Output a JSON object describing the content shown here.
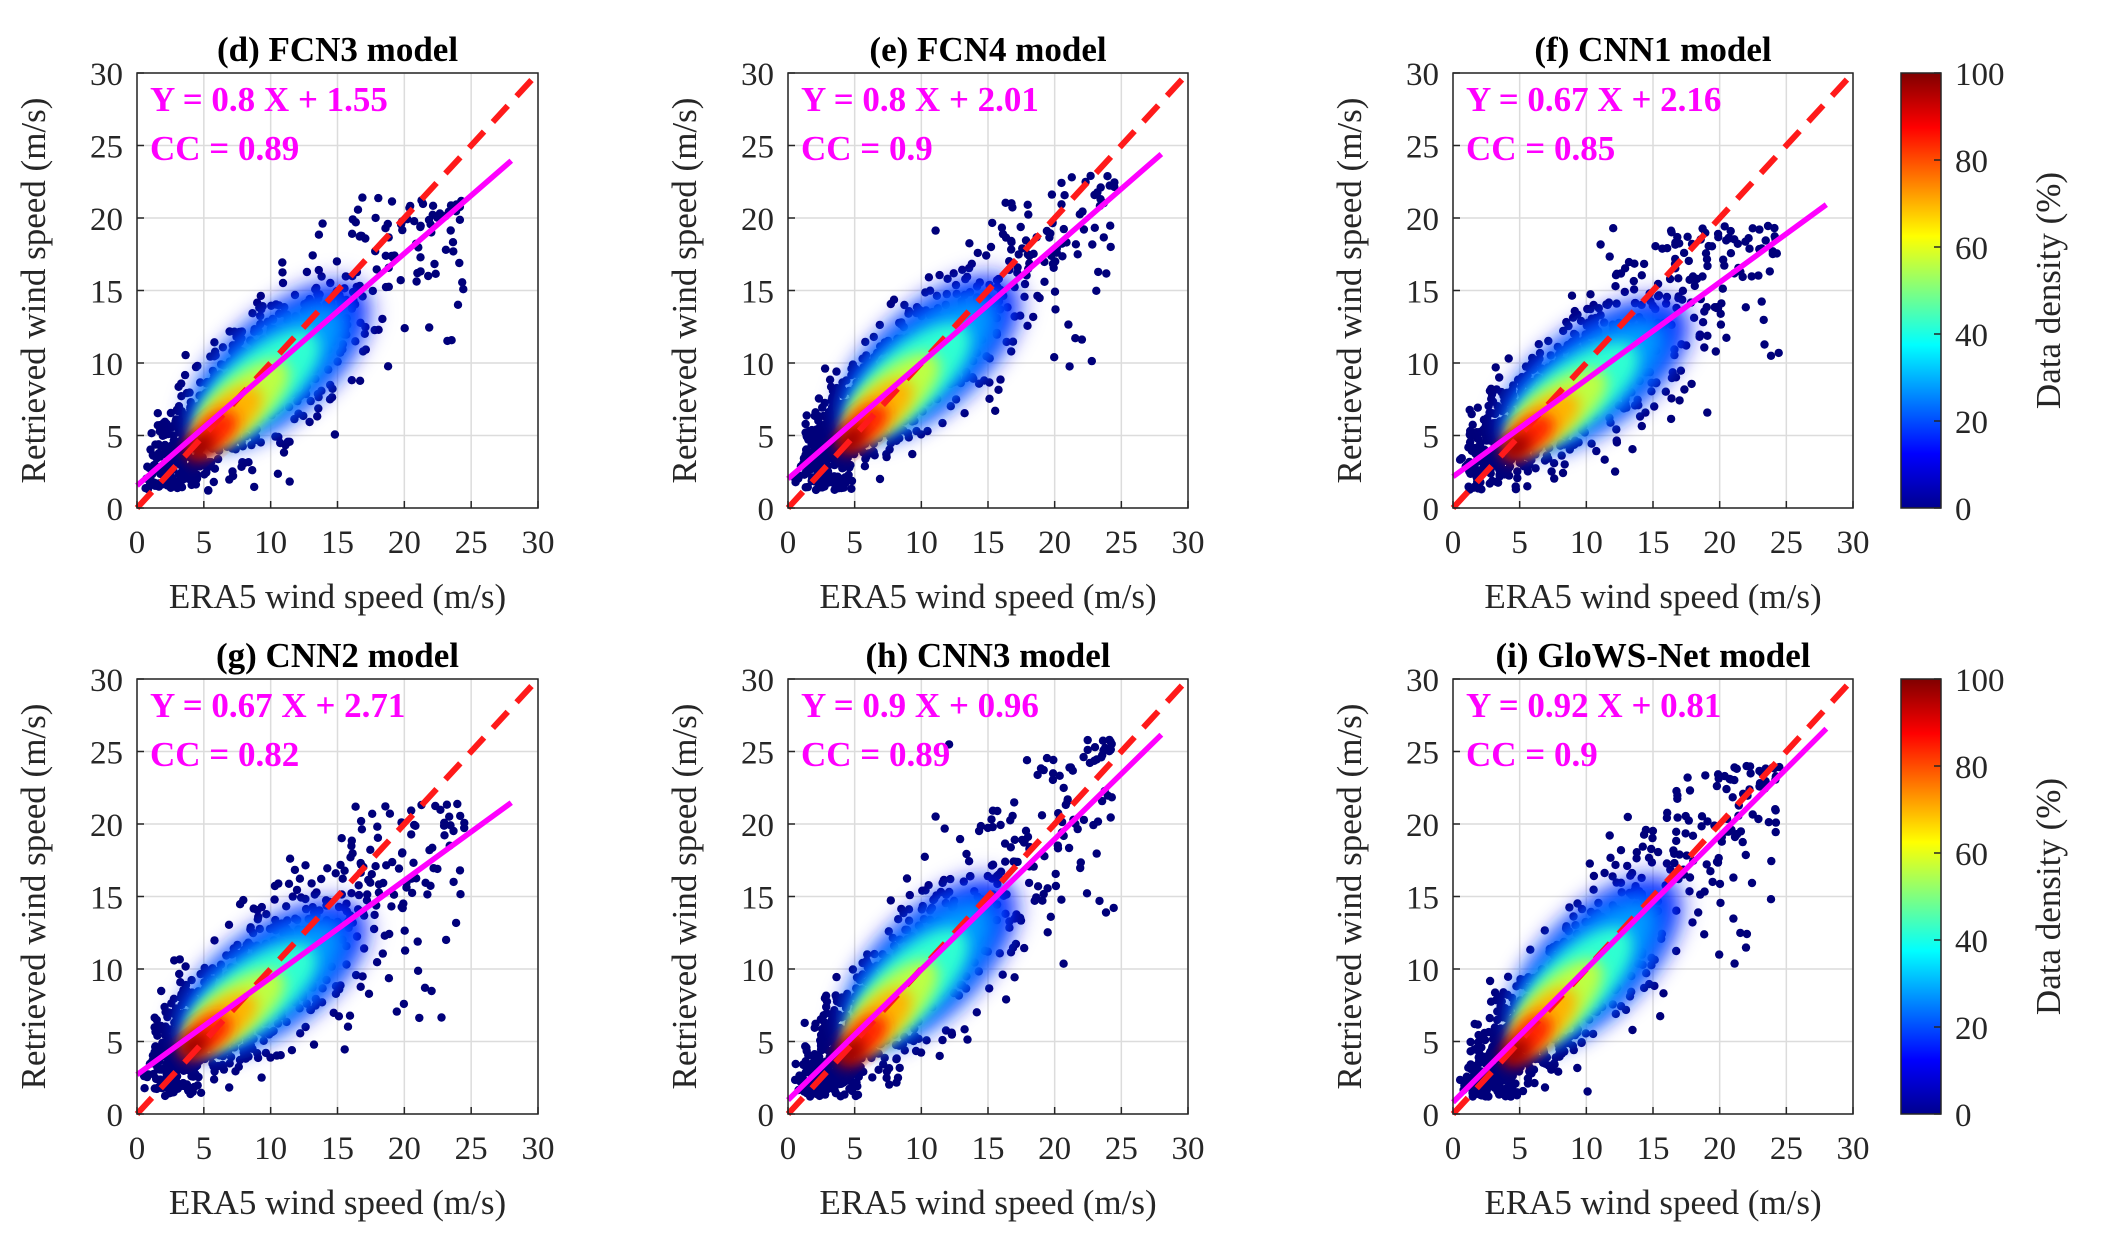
{
  "colorbar": {
    "label": "Data density (%)",
    "ticks": [
      "0",
      "20",
      "40",
      "60",
      "80",
      "100"
    ],
    "range": [
      0,
      100
    ]
  },
  "colors": {
    "fit_line": "#ff00ff",
    "identity_line": "#ff1a1a",
    "annotation": "#ff00ff",
    "point_low": "#000080"
  },
  "chart_data": [
    {
      "type": "scatter",
      "title": "(d) FCN3 model",
      "xlabel": "ERA5 wind speed (m/s)",
      "ylabel": "Retrieved wind speed (m/s)",
      "xlim": [
        0,
        30
      ],
      "ylim": [
        0,
        30
      ],
      "x_ticks": [
        "0",
        "5",
        "10",
        "15",
        "20",
        "25",
        "30"
      ],
      "y_ticks": [
        "0",
        "5",
        "10",
        "15",
        "20",
        "25",
        "30"
      ],
      "fit": {
        "slope": 0.8,
        "intercept": 1.55,
        "x_end": 28
      },
      "equation": "Y = 0.8 X + 1.55",
      "cc_text": "CC = 0.89",
      "density_peak": [
        4.5,
        4.0
      ],
      "cloud_max_y": 21.5,
      "spread": 2.6
    },
    {
      "type": "scatter",
      "title": "(e) FCN4 model",
      "xlabel": "ERA5 wind speed (m/s)",
      "ylabel": "Retrieved wind speed (m/s)",
      "xlim": [
        0,
        30
      ],
      "ylim": [
        0,
        30
      ],
      "x_ticks": [
        "0",
        "5",
        "10",
        "15",
        "20",
        "25",
        "30"
      ],
      "y_ticks": [
        "0",
        "5",
        "10",
        "15",
        "20",
        "25",
        "30"
      ],
      "fit": {
        "slope": 0.8,
        "intercept": 2.01,
        "x_end": 28
      },
      "equation": "Y = 0.8 X + 2.01",
      "cc_text": "CC = 0.9",
      "density_peak": [
        4.5,
        4.5
      ],
      "cloud_max_y": 23,
      "spread": 2.5
    },
    {
      "type": "scatter",
      "title": "(f) CNN1 model",
      "xlabel": "ERA5 wind speed (m/s)",
      "ylabel": "Retrieved wind speed (m/s)",
      "xlim": [
        0,
        30
      ],
      "ylim": [
        0,
        30
      ],
      "x_ticks": [
        "0",
        "5",
        "10",
        "15",
        "20",
        "25",
        "30"
      ],
      "y_ticks": [
        "0",
        "5",
        "10",
        "15",
        "20",
        "25",
        "30"
      ],
      "fit": {
        "slope": 0.67,
        "intercept": 2.16,
        "x_end": 28
      },
      "equation": "Y = 0.67 X + 2.16",
      "cc_text": "CC = 0.85",
      "density_peak": [
        4.5,
        4.0
      ],
      "cloud_max_y": 19.5,
      "spread": 2.6
    },
    {
      "type": "scatter",
      "title": "(g) CNN2 model",
      "xlabel": "ERA5 wind speed (m/s)",
      "ylabel": "Retrieved wind speed (m/s)",
      "xlim": [
        0,
        30
      ],
      "ylim": [
        0,
        30
      ],
      "x_ticks": [
        "0",
        "5",
        "10",
        "15",
        "20",
        "25",
        "30"
      ],
      "y_ticks": [
        "0",
        "5",
        "10",
        "15",
        "20",
        "25",
        "30"
      ],
      "fit": {
        "slope": 0.67,
        "intercept": 2.71,
        "x_end": 28
      },
      "equation": "Y = 0.67 X + 2.71",
      "cc_text": "CC = 0.82",
      "density_peak": [
        4.0,
        4.5
      ],
      "cloud_max_y": 21.5,
      "spread": 2.8
    },
    {
      "type": "scatter",
      "title": "(h) CNN3 model",
      "xlabel": "ERA5 wind speed (m/s)",
      "ylabel": "Retrieved wind speed (m/s)",
      "xlim": [
        0,
        30
      ],
      "ylim": [
        0,
        30
      ],
      "x_ticks": [
        "0",
        "5",
        "10",
        "15",
        "20",
        "25",
        "30"
      ],
      "y_ticks": [
        "0",
        "5",
        "10",
        "15",
        "20",
        "25",
        "30"
      ],
      "fit": {
        "slope": 0.9,
        "intercept": 0.96,
        "x_end": 28
      },
      "equation": "Y = 0.9 X + 0.96",
      "cc_text": "CC = 0.89",
      "density_peak": [
        4.5,
        4.0
      ],
      "cloud_max_y": 26,
      "spread": 2.9
    },
    {
      "type": "scatter",
      "title": "(i) GloWS-Net model",
      "xlabel": "ERA5 wind speed (m/s)",
      "ylabel": "Retrieved wind speed (m/s)",
      "xlim": [
        0,
        30
      ],
      "ylim": [
        0,
        30
      ],
      "x_ticks": [
        "0",
        "5",
        "10",
        "15",
        "20",
        "25",
        "30"
      ],
      "y_ticks": [
        "0",
        "5",
        "10",
        "15",
        "20",
        "25",
        "30"
      ],
      "fit": {
        "slope": 0.92,
        "intercept": 0.81,
        "x_end": 28
      },
      "equation": "Y = 0.92 X + 0.81",
      "cc_text": "CC = 0.9",
      "density_peak": [
        4.5,
        4.0
      ],
      "cloud_max_y": 24,
      "spread": 2.7
    }
  ]
}
